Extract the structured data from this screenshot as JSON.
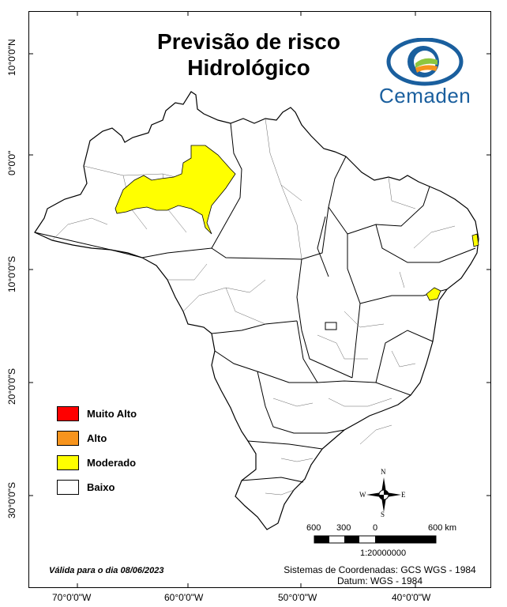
{
  "map": {
    "title_line1": "Previsão de risco",
    "title_line2": "Hidrológico",
    "logo_text": "Cemaden",
    "legend": [
      {
        "label": "Muito Alto",
        "color": "#ff0000"
      },
      {
        "label": "Alto",
        "color": "#f7941d"
      },
      {
        "label": "Moderado",
        "color": "#ffff00"
      },
      {
        "label": "Baixo",
        "color": "#ffffff"
      }
    ],
    "valid_date": "Válida para o dia 08/06/2023",
    "coord_system": "Sistemas de Coordenadas: GCS WGS - 1984",
    "datum": "Datum: WGS - 1984",
    "scale_ratio": "1:20000000",
    "scale_labels": [
      "600",
      "300",
      "0",
      "600 km"
    ],
    "compass": {
      "n": "N",
      "s": "S",
      "e": "E",
      "w": "W"
    },
    "lat_labels": [
      "10°0'0\"N",
      "0°0'0\"",
      "10°0'0\"S",
      "20°0'0\"S",
      "30°0'0\"S"
    ],
    "lon_labels": [
      "70°0'0\"W",
      "60°0'0\"W",
      "50°0'0\"W",
      "40°0'0\"W"
    ],
    "moderate_color": "#ffff00"
  }
}
